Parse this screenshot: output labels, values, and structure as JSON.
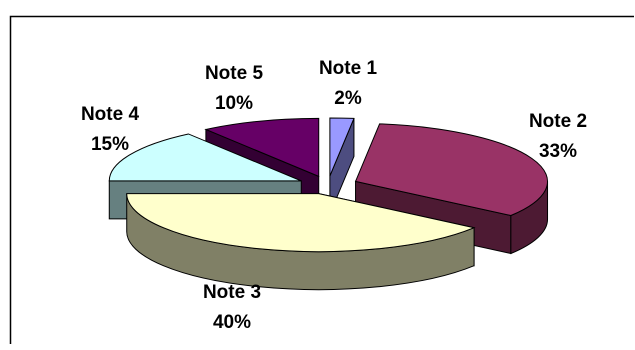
{
  "chart_data": {
    "type": "pie",
    "style": "3d-exploded",
    "legend": "none",
    "slices": [
      {
        "label": "Note 1",
        "value": 2,
        "value_label": "2%",
        "color": "#9999ff",
        "side_color": "#4d4d80"
      },
      {
        "label": "Note 2",
        "value": 33,
        "value_label": "33%",
        "color": "#993366",
        "side_color": "#4d1a33"
      },
      {
        "label": "Note 3",
        "value": 40,
        "value_label": "40%",
        "color": "#ffffcc",
        "side_color": "#808066"
      },
      {
        "label": "Note 4",
        "value": 15,
        "value_label": "15%",
        "color": "#ccffff",
        "side_color": "#668080"
      },
      {
        "label": "Note 5",
        "value": 10,
        "value_label": "10%",
        "color": "#660066",
        "side_color": "#330033"
      }
    ]
  }
}
